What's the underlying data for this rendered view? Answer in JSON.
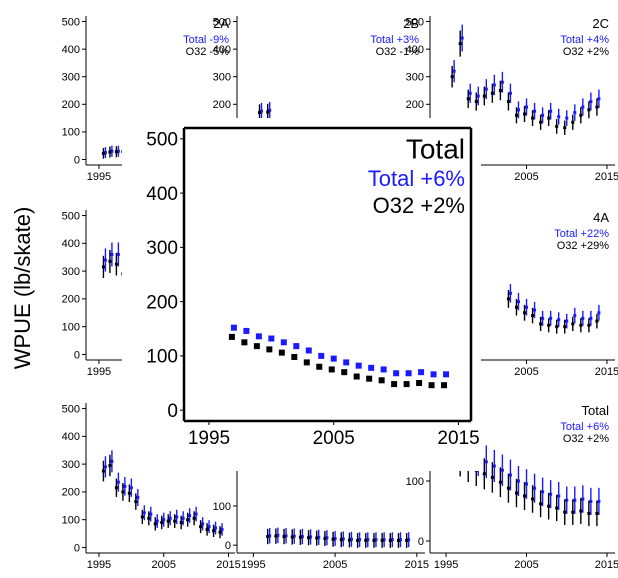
{
  "ylabel": "WPUE (lb/skate)",
  "colors": {
    "total": "#1a1aff",
    "o32": "#000000"
  },
  "chart_data": [
    {
      "type": "scatter",
      "title": "2A",
      "xlim": [
        1993,
        2016
      ],
      "ylim": [
        -20,
        520
      ],
      "yticks": [
        0,
        100,
        200,
        300,
        400,
        500
      ],
      "xticks": [
        1995
      ],
      "legend": {
        "total": "Total -9%",
        "o32": "O32 -5%"
      },
      "series": [
        {
          "name": "Total",
          "x": [
            1996,
            1997,
            1998,
            1999,
            2000
          ],
          "y": [
            25,
            30,
            30,
            32,
            32
          ]
        },
        {
          "name": "O32",
          "x": [
            1996,
            1997,
            1998,
            1999,
            2000
          ],
          "y": [
            22,
            27,
            28,
            29,
            30
          ]
        }
      ]
    },
    {
      "type": "scatter",
      "title": "2B",
      "xlim": [
        1993,
        2016
      ],
      "ylim": [
        -20,
        520
      ],
      "yticks": [
        0,
        100,
        200,
        300,
        400,
        500
      ],
      "xticks": [],
      "legend": {
        "total": "Total +3%",
        "o32": "O32 -1%"
      },
      "series": [
        {
          "name": "Total",
          "x": [
            1996,
            1997
          ],
          "y": [
            175,
            178
          ]
        },
        {
          "name": "O32",
          "x": [
            1996,
            1997
          ],
          "y": [
            170,
            172
          ]
        }
      ]
    },
    {
      "type": "scatter",
      "title": "2C",
      "xlim": [
        1993,
        2016
      ],
      "ylim": [
        -20,
        520
      ],
      "yticks": [
        0,
        100,
        200,
        300,
        400,
        500
      ],
      "xticks": [
        2005,
        2015
      ],
      "legend": {
        "total": "Total +4%",
        "o32": "O32 +2%"
      },
      "series": [
        {
          "name": "Total",
          "x": [
            1996,
            1997,
            1998,
            1999,
            2000,
            2001,
            2002,
            2003,
            2004,
            2005,
            2006,
            2007,
            2008,
            2009,
            2010,
            2011,
            2012,
            2013,
            2014
          ],
          "y": [
            320,
            440,
            240,
            230,
            255,
            270,
            280,
            240,
            180,
            190,
            175,
            160,
            175,
            155,
            150,
            170,
            190,
            210,
            220
          ]
        },
        {
          "name": "O32",
          "x": [
            1996,
            1997,
            1998,
            1999,
            2000,
            2001,
            2002,
            2003,
            2004,
            2005,
            2006,
            2007,
            2008,
            2009,
            2010,
            2011,
            2012,
            2013,
            2014
          ],
          "y": [
            300,
            420,
            220,
            210,
            230,
            240,
            250,
            210,
            160,
            165,
            150,
            135,
            150,
            120,
            115,
            135,
            160,
            180,
            190
          ]
        }
      ]
    },
    {
      "type": "scatter",
      "title": "",
      "xlim": [
        1993,
        2016
      ],
      "ylim": [
        -20,
        520
      ],
      "yticks": [
        0,
        100,
        200,
        300,
        400,
        500
      ],
      "xticks": [
        1995
      ],
      "legend": null,
      "series": [
        {
          "name": "Total",
          "x": [
            1996,
            1997,
            1998,
            1999,
            2000
          ],
          "y": [
            340,
            360,
            360,
            320,
            280
          ]
        },
        {
          "name": "O32",
          "x": [
            1996,
            1997,
            1998,
            1999,
            2000
          ],
          "y": [
            315,
            335,
            325,
            290,
            245
          ]
        }
      ]
    },
    {
      "type": "scatter",
      "title": "4A",
      "xlim": [
        1993,
        2016
      ],
      "ylim": [
        -20,
        520
      ],
      "yticks": [
        0,
        100,
        200,
        300,
        400,
        500
      ],
      "xticks": [
        2005,
        2015
      ],
      "legend": {
        "total": "Total +22%",
        "o32": "O32 +29%"
      },
      "series": [
        {
          "name": "Total",
          "x": [
            2003,
            2004,
            2005,
            2006,
            2007,
            2008,
            2009,
            2010,
            2011,
            2012,
            2013,
            2014
          ],
          "y": [
            220,
            190,
            170,
            160,
            130,
            130,
            125,
            120,
            140,
            130,
            130,
            150
          ]
        },
        {
          "name": "O32",
          "x": [
            2003,
            2004,
            2005,
            2006,
            2007,
            2008,
            2009,
            2010,
            2011,
            2012,
            2013,
            2014
          ],
          "y": [
            200,
            170,
            150,
            140,
            110,
            105,
            100,
            100,
            110,
            105,
            105,
            120
          ]
        }
      ]
    },
    {
      "type": "scatter",
      "title": "",
      "xlim": [
        1993,
        2016
      ],
      "ylim": [
        -20,
        520
      ],
      "yticks": [
        0,
        100,
        200,
        300,
        400,
        500
      ],
      "xticks": [
        1995,
        2005,
        2015
      ],
      "legend": null,
      "series": [
        {
          "name": "Total",
          "x": [
            1996,
            1997,
            1998,
            1999,
            2000,
            2001,
            2002,
            2003,
            2004,
            2005,
            2006,
            2007,
            2008,
            2009,
            2010,
            2011,
            2012,
            2013,
            2014
          ],
          "y": [
            290,
            310,
            235,
            220,
            215,
            180,
            125,
            120,
            95,
            100,
            105,
            110,
            105,
            115,
            120,
            85,
            75,
            70,
            65
          ]
        },
        {
          "name": "O32",
          "x": [
            1996,
            1997,
            1998,
            1999,
            2000,
            2001,
            2002,
            2003,
            2004,
            2005,
            2006,
            2007,
            2008,
            2009,
            2010,
            2011,
            2012,
            2013,
            2014
          ],
          "y": [
            275,
            295,
            215,
            200,
            195,
            165,
            110,
            105,
            85,
            90,
            95,
            95,
            90,
            100,
            105,
            75,
            65,
            60,
            55
          ]
        }
      ]
    },
    {
      "type": "scatter",
      "title": "",
      "xlim": [
        1993,
        2016
      ],
      "ylim": [
        -20,
        230
      ],
      "yticks": [
        0,
        100,
        200
      ],
      "xticks": [
        1995,
        2005,
        2015
      ],
      "legend": null,
      "series": [
        {
          "name": "Total",
          "x": [
            1997,
            1998,
            1999,
            2000,
            2001,
            2002,
            2003,
            2004,
            2005,
            2006,
            2007,
            2008,
            2009,
            2010,
            2011,
            2012,
            2013,
            2014
          ],
          "y": [
            24,
            25,
            24,
            23,
            22,
            21,
            20,
            19,
            17,
            16,
            15,
            14,
            14,
            14,
            14,
            14,
            14,
            14
          ]
        },
        {
          "name": "O32",
          "x": [
            1997,
            1998,
            1999,
            2000,
            2001,
            2002,
            2003,
            2004,
            2005,
            2006,
            2007,
            2008,
            2009,
            2010,
            2011,
            2012,
            2013,
            2014
          ],
          "y": [
            22,
            23,
            22,
            21,
            20,
            19,
            18,
            17,
            15,
            14,
            13,
            12,
            12,
            12,
            12,
            12,
            12,
            12
          ]
        }
      ]
    },
    {
      "type": "scatter",
      "title": "Total",
      "xlim": [
        1993,
        2016
      ],
      "ylim": [
        -20,
        230
      ],
      "yticks": [
        0,
        100,
        200
      ],
      "xticks": [
        1995,
        2005,
        2015
      ],
      "legend": {
        "total": "Total +6%",
        "o32": "O32 +2%"
      },
      "series": [
        {
          "name": "Total",
          "x": [
            1997,
            1998,
            1999,
            2000,
            2001,
            2002,
            2003,
            2004,
            2005,
            2006,
            2007,
            2008,
            2009,
            2010,
            2011,
            2012,
            2013,
            2014
          ],
          "y": [
            152,
            146,
            136,
            132,
            125,
            118,
            110,
            100,
            95,
            88,
            82,
            78,
            75,
            68,
            68,
            70,
            66,
            66
          ]
        },
        {
          "name": "O32",
          "x": [
            1997,
            1998,
            1999,
            2000,
            2001,
            2002,
            2003,
            2004,
            2005,
            2006,
            2007,
            2008,
            2009,
            2010,
            2011,
            2012,
            2013,
            2014
          ],
          "y": [
            135,
            125,
            118,
            112,
            106,
            98,
            88,
            80,
            75,
            70,
            62,
            58,
            55,
            48,
            48,
            50,
            46,
            46
          ]
        }
      ]
    },
    {
      "type": "scatter",
      "title": "Total",
      "xlim": [
        1993,
        2016
      ],
      "ylim": [
        -20,
        520
      ],
      "yticks": [
        0,
        100,
        200,
        300,
        400,
        500
      ],
      "xticks": [
        1995,
        2005,
        2015
      ],
      "legend": {
        "total": "Total +6%",
        "o32": "O32 +2%"
      },
      "series": [
        {
          "name": "Total",
          "x": [
            1997,
            1998,
            1999,
            2000,
            2001,
            2002,
            2003,
            2004,
            2005,
            2006,
            2007,
            2008,
            2009,
            2010,
            2011,
            2012,
            2013,
            2014
          ],
          "y": [
            152,
            146,
            136,
            132,
            125,
            118,
            110,
            100,
            95,
            88,
            82,
            78,
            75,
            68,
            68,
            70,
            66,
            66
          ]
        },
        {
          "name": "O32",
          "x": [
            1997,
            1998,
            1999,
            2000,
            2001,
            2002,
            2003,
            2004,
            2005,
            2006,
            2007,
            2008,
            2009,
            2010,
            2011,
            2012,
            2013,
            2014
          ],
          "y": [
            135,
            125,
            118,
            112,
            106,
            98,
            88,
            80,
            75,
            70,
            62,
            58,
            55,
            48,
            48,
            50,
            46,
            46
          ]
        }
      ]
    }
  ]
}
